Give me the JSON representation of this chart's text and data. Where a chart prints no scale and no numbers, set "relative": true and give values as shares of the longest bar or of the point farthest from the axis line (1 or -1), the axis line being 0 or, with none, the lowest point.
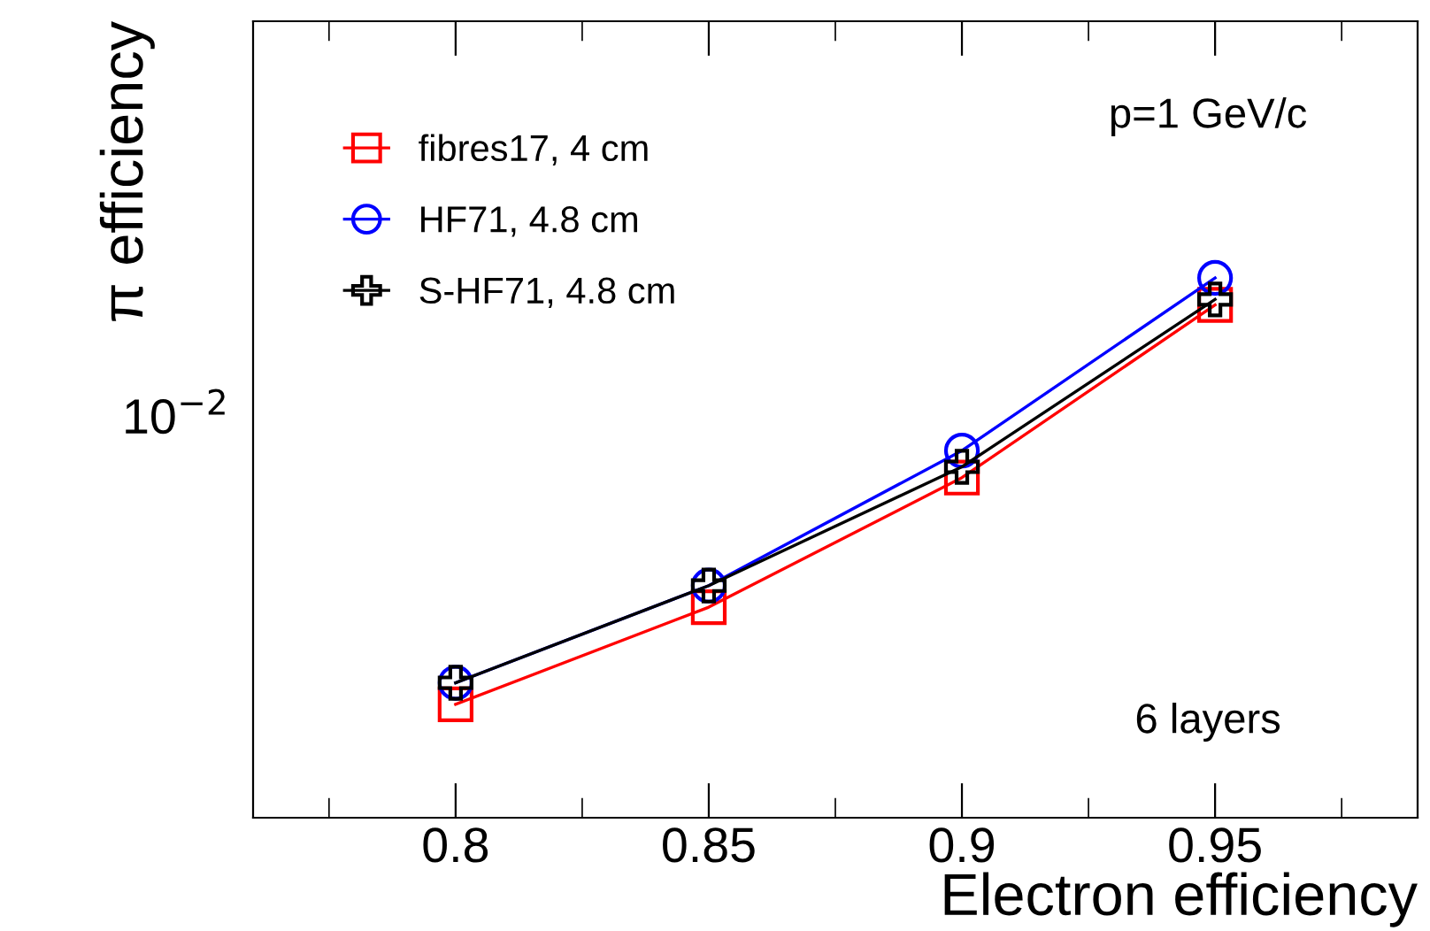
{
  "chart_data": {
    "type": "line",
    "xlabel": "Electron efficiency",
    "ylabel": "π efficiency",
    "x": [
      0.8,
      0.85,
      0.9,
      0.95
    ],
    "series": [
      {
        "name": "fibres17, 4 cm",
        "color": "#ff0000",
        "marker": "square",
        "values": [
          0.21,
          0.39,
          0.63,
          0.95
        ]
      },
      {
        "name": "HF71, 4.8 cm",
        "color": "#0000ff",
        "marker": "circle",
        "values": [
          0.25,
          0.43,
          0.68,
          1
        ]
      },
      {
        "name": "S-HF71, 4.8 cm",
        "color": "#000000",
        "marker": "cross",
        "values": [
          0.25,
          0.43,
          0.65,
          0.96
        ]
      }
    ],
    "relative": true,
    "xlim": [
      0.76,
      0.99
    ],
    "xticks": [
      0.8,
      0.85,
      0.9,
      0.95
    ],
    "legend": "top left",
    "line_style": "solid",
    "annotations": [
      "p=1 GeV/c",
      "6 layers",
      "10$^{−2}$"
    ]
  }
}
